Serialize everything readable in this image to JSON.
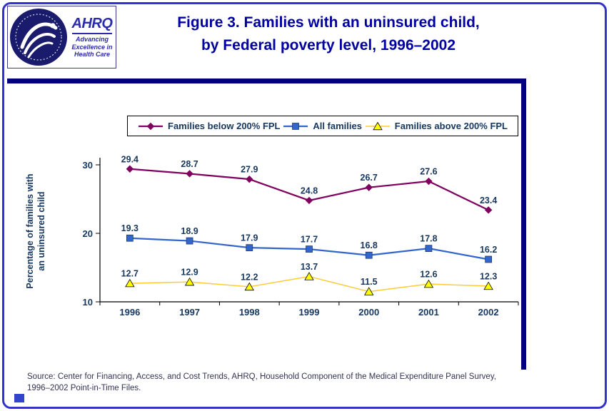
{
  "header": {
    "title_lines": [
      "Figure 3. Families with an uninsured child,",
      "by Federal poverty level, 1996–2002"
    ],
    "logos": {
      "ahrq": "AHRQ",
      "ahrq_tagline_lines": [
        "Advancing",
        "Excellence in",
        "Health Care"
      ]
    }
  },
  "chart_data": {
    "type": "line",
    "x": [
      1996,
      1997,
      1998,
      1999,
      2000,
      2001,
      2002
    ],
    "series": [
      {
        "name": "Families below 200% FPL",
        "values": [
          29.4,
          28.7,
          27.9,
          24.8,
          26.7,
          27.6,
          23.4
        ],
        "color": "#800060",
        "marker": "diamond",
        "line_width": 2.25
      },
      {
        "name": "All families",
        "values": [
          19.3,
          18.9,
          17.9,
          17.7,
          16.8,
          17.8,
          16.2
        ],
        "color": "#3366CC",
        "marker": "square",
        "line_width": 2.25
      },
      {
        "name": "Families above 200% FPL",
        "values": [
          12.7,
          12.9,
          12.2,
          13.7,
          11.5,
          12.6,
          12.3
        ],
        "color": "#FFCC33",
        "marker": "triangle",
        "marker_fill": "#FFFF00",
        "line_width": 1.5
      }
    ],
    "ylabel": "Percentage of families with an uninsured child",
    "xlabel": "",
    "ylim": [
      10,
      30
    ],
    "yticks": [
      10,
      20,
      30
    ],
    "legend_position": "top",
    "grid": false,
    "data_labels": true
  },
  "source": {
    "lines": [
      "Source: Center for Financing, Access, and Cost Trends, AHRQ, Household Component of the Medical Expenditure Panel Survey,",
      "1996–2002 Point-in-Time Files."
    ]
  },
  "colors": {
    "frame_border": "#3333CC",
    "accent_bar": "#000080",
    "title": "#0000A0",
    "axis_text": "#17375E",
    "source_text": "#333355",
    "legend_border": "#000000"
  }
}
